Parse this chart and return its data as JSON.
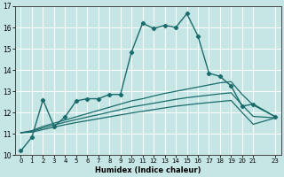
{
  "xlabel": "Humidex (Indice chaleur)",
  "xlim": [
    -0.5,
    23.5
  ],
  "ylim": [
    10,
    17
  ],
  "yticks": [
    10,
    11,
    12,
    13,
    14,
    15,
    16,
    17
  ],
  "xticks": [
    0,
    1,
    2,
    3,
    4,
    5,
    6,
    7,
    8,
    9,
    10,
    11,
    12,
    13,
    14,
    15,
    16,
    17,
    18,
    19,
    20,
    21,
    23
  ],
  "bg_color": "#c6e6e6",
  "grid_color": "#ffffff",
  "line_color": "#1a6b6b",
  "curve_main_x": [
    0,
    1,
    2,
    3,
    4,
    5,
    6,
    7,
    8,
    9,
    10,
    11,
    12,
    13,
    14,
    15,
    16,
    17,
    18,
    19,
    20,
    21,
    23
  ],
  "curve_main_y": [
    10.2,
    10.85,
    12.6,
    11.35,
    11.8,
    12.55,
    12.65,
    12.65,
    12.85,
    12.85,
    14.85,
    16.2,
    15.95,
    16.1,
    16.0,
    16.65,
    15.6,
    13.85,
    13.7,
    13.25,
    12.3,
    12.4,
    11.8
  ],
  "curve_upper_x": [
    0,
    1,
    2,
    3,
    4,
    5,
    6,
    7,
    8,
    9,
    10,
    11,
    12,
    13,
    14,
    15,
    16,
    17,
    18,
    19,
    20,
    21,
    23
  ],
  "curve_upper_y": [
    11.05,
    11.15,
    11.35,
    11.5,
    11.65,
    11.8,
    11.95,
    12.1,
    12.25,
    12.4,
    12.55,
    12.65,
    12.78,
    12.9,
    13.0,
    13.1,
    13.2,
    13.3,
    13.4,
    13.45,
    12.85,
    12.35,
    11.8
  ],
  "curve_mid_x": [
    0,
    1,
    2,
    3,
    4,
    5,
    6,
    7,
    8,
    9,
    10,
    11,
    12,
    13,
    14,
    15,
    16,
    17,
    18,
    19,
    20,
    21,
    23
  ],
  "curve_mid_y": [
    11.05,
    11.12,
    11.28,
    11.42,
    11.55,
    11.67,
    11.79,
    11.9,
    12.02,
    12.14,
    12.26,
    12.35,
    12.44,
    12.53,
    12.62,
    12.7,
    12.76,
    12.82,
    12.88,
    12.93,
    12.35,
    11.82,
    11.75
  ],
  "curve_lower_x": [
    0,
    1,
    2,
    3,
    4,
    5,
    6,
    7,
    8,
    9,
    10,
    11,
    12,
    13,
    14,
    15,
    16,
    17,
    18,
    19,
    20,
    21,
    23
  ],
  "curve_lower_y": [
    11.05,
    11.08,
    11.2,
    11.32,
    11.43,
    11.53,
    11.62,
    11.71,
    11.8,
    11.89,
    11.98,
    12.06,
    12.14,
    12.22,
    12.3,
    12.36,
    12.42,
    12.47,
    12.52,
    12.57,
    12.0,
    11.45,
    11.75
  ]
}
